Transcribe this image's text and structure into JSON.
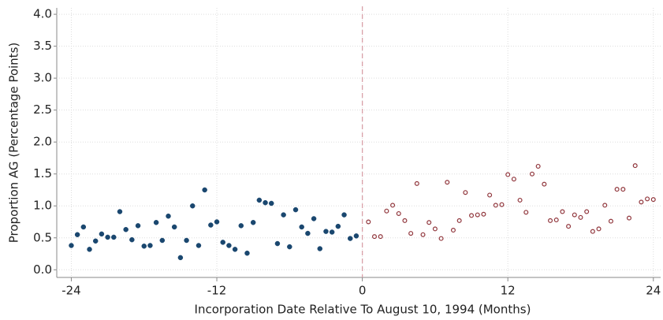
{
  "chart_data": {
    "type": "scatter",
    "xlabel": "Incorporation Date Relative To August 10, 1994 (Months)",
    "ylabel": "Proportion AG (Percentage Points)",
    "xlim": [
      -25.2,
      24.6
    ],
    "ylim": [
      -0.12,
      4.1
    ],
    "xticks": [
      -24,
      -12,
      0,
      12,
      24
    ],
    "yticks": [
      {
        "value": 0,
        "label": "0.0"
      },
      {
        "value": 0.5,
        "label": "0.5"
      },
      {
        "value": 1,
        "label": "1.0"
      },
      {
        "value": 1.5,
        "label": "1.5"
      },
      {
        "value": 2,
        "label": "2.0"
      },
      {
        "value": 2.5,
        "label": "2.5"
      },
      {
        "value": 3,
        "label": "3.0"
      },
      {
        "value": 3.5,
        "label": "3.5"
      },
      {
        "value": 4,
        "label": "4.0"
      }
    ],
    "grid": true,
    "reference_x": 0,
    "reference_color": "#d9a0a8",
    "series": [
      {
        "color": "#1a476f",
        "marker": "filled",
        "x": [
          -24,
          -23.5,
          -23,
          -22.5,
          -22,
          -21.5,
          -21,
          -20.5,
          -20,
          -19.5,
          -19,
          -18.5,
          -18,
          -17.5,
          -17,
          -16.5,
          -16,
          -15.5,
          -15,
          -14.5,
          -14,
          -13.5,
          -13,
          -12.5,
          -12,
          -11.5,
          -11,
          -10.5,
          -10,
          -9.5,
          -9,
          -8.5,
          -8,
          -7.5,
          -7,
          -6.5,
          -6,
          -5.5,
          -5,
          -4.5,
          -4,
          -3.5,
          -3,
          -2.5,
          -2,
          -1.5,
          -1,
          -0.5
        ],
        "values": [
          0.38,
          0.55,
          0.67,
          0.32,
          0.45,
          0.56,
          0.51,
          0.51,
          0.91,
          0.63,
          0.47,
          0.69,
          0.37,
          0.38,
          0.74,
          0.46,
          0.84,
          0.67,
          0.19,
          0.46,
          1.0,
          0.38,
          1.25,
          0.7,
          0.75,
          0.43,
          0.38,
          0.32,
          0.69,
          0.26,
          0.74,
          1.09,
          1.05,
          1.04,
          0.41,
          0.86,
          0.36,
          0.94,
          0.67,
          0.57,
          0.8,
          0.33,
          0.6,
          0.59,
          0.68,
          0.86,
          0.49,
          0.53
        ]
      },
      {
        "color": "#90353b",
        "marker": "hollow",
        "x": [
          0.5,
          1,
          1.5,
          2,
          2.5,
          3,
          3.5,
          4,
          4.5,
          5,
          5.5,
          6,
          6.5,
          7,
          7.5,
          8,
          8.5,
          9,
          9.5,
          10,
          10.5,
          11,
          11.5,
          12,
          12.5,
          13,
          13.5,
          14,
          14.5,
          15,
          15.5,
          16,
          16.5,
          17,
          17.5,
          18,
          18.5,
          19,
          19.5,
          20,
          20.5,
          21,
          21.5,
          22,
          22.5,
          23,
          23.5,
          24
        ],
        "values": [
          0.75,
          0.52,
          0.52,
          0.92,
          1.01,
          0.88,
          0.77,
          0.57,
          1.35,
          0.55,
          0.74,
          0.64,
          0.49,
          1.37,
          0.62,
          0.77,
          1.21,
          0.85,
          0.86,
          0.87,
          1.17,
          1.01,
          1.02,
          1.49,
          1.42,
          1.09,
          0.9,
          1.5,
          1.62,
          1.34,
          0.77,
          0.78,
          0.91,
          0.68,
          0.86,
          0.82,
          0.91,
          0.6,
          0.64,
          1.01,
          0.76,
          1.26,
          1.26,
          0.81,
          1.63,
          1.06,
          1.11,
          1.1
        ]
      }
    ]
  }
}
